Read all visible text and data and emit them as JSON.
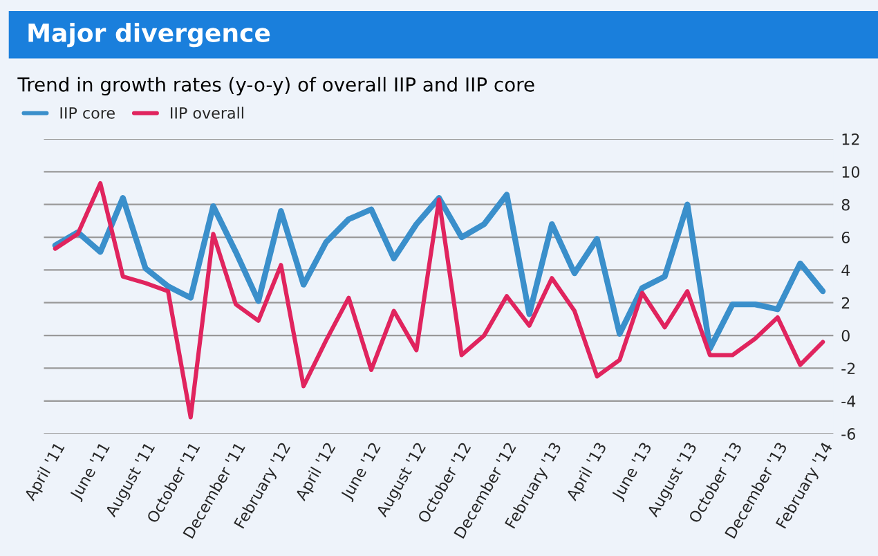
{
  "chart_data": {
    "type": "line",
    "title": "Major divergence",
    "subtitle": "Trend in growth rates (y-o-y) of overall IIP and IIP core",
    "categories": [
      "April '11",
      null,
      "June '11",
      null,
      "August '11",
      null,
      "October '11",
      null,
      "December '11",
      null,
      "February '12",
      null,
      "April '12",
      null,
      "June '12",
      null,
      "August '12",
      null,
      "October '12",
      null,
      "December '12",
      null,
      "February '13",
      null,
      "April '13",
      null,
      "June '13",
      null,
      "August '13",
      null,
      "October '13",
      null,
      "December '13",
      null,
      "February '14"
    ],
    "series": [
      {
        "name": "IIP core",
        "color": "#3a8fcb",
        "values": [
          5.5,
          6.3,
          5.1,
          8.4,
          4.1,
          3.0,
          2.3,
          7.9,
          5.1,
          2.1,
          7.6,
          3.1,
          5.7,
          7.1,
          7.7,
          4.7,
          6.8,
          8.4,
          6.0,
          6.8,
          8.6,
          1.3,
          6.8,
          3.8,
          5.9,
          0.1,
          2.9,
          3.6,
          8.0,
          -0.8,
          1.9,
          1.9,
          1.6,
          4.4,
          2.7
        ]
      },
      {
        "name": "IIP overall",
        "color": "#e0245e",
        "values": [
          5.3,
          6.2,
          9.3,
          3.6,
          3.2,
          2.7,
          -5.0,
          6.2,
          1.9,
          0.9,
          4.3,
          -3.1,
          -0.3,
          2.3,
          -2.1,
          1.5,
          -0.9,
          8.3,
          -1.2,
          0.0,
          2.4,
          0.6,
          3.5,
          1.5,
          -2.5,
          -1.5,
          2.6,
          0.5,
          2.7,
          -1.2,
          -1.2,
          -0.2,
          1.1,
          -1.8,
          -0.4
        ]
      }
    ],
    "ylim": [
      -6,
      12
    ],
    "yticks": [
      -6,
      -4,
      -2,
      0,
      2,
      4,
      6,
      8,
      10,
      12
    ],
    "grid": "y",
    "legend": "top left",
    "line_style": "solid",
    "marker": "none"
  }
}
